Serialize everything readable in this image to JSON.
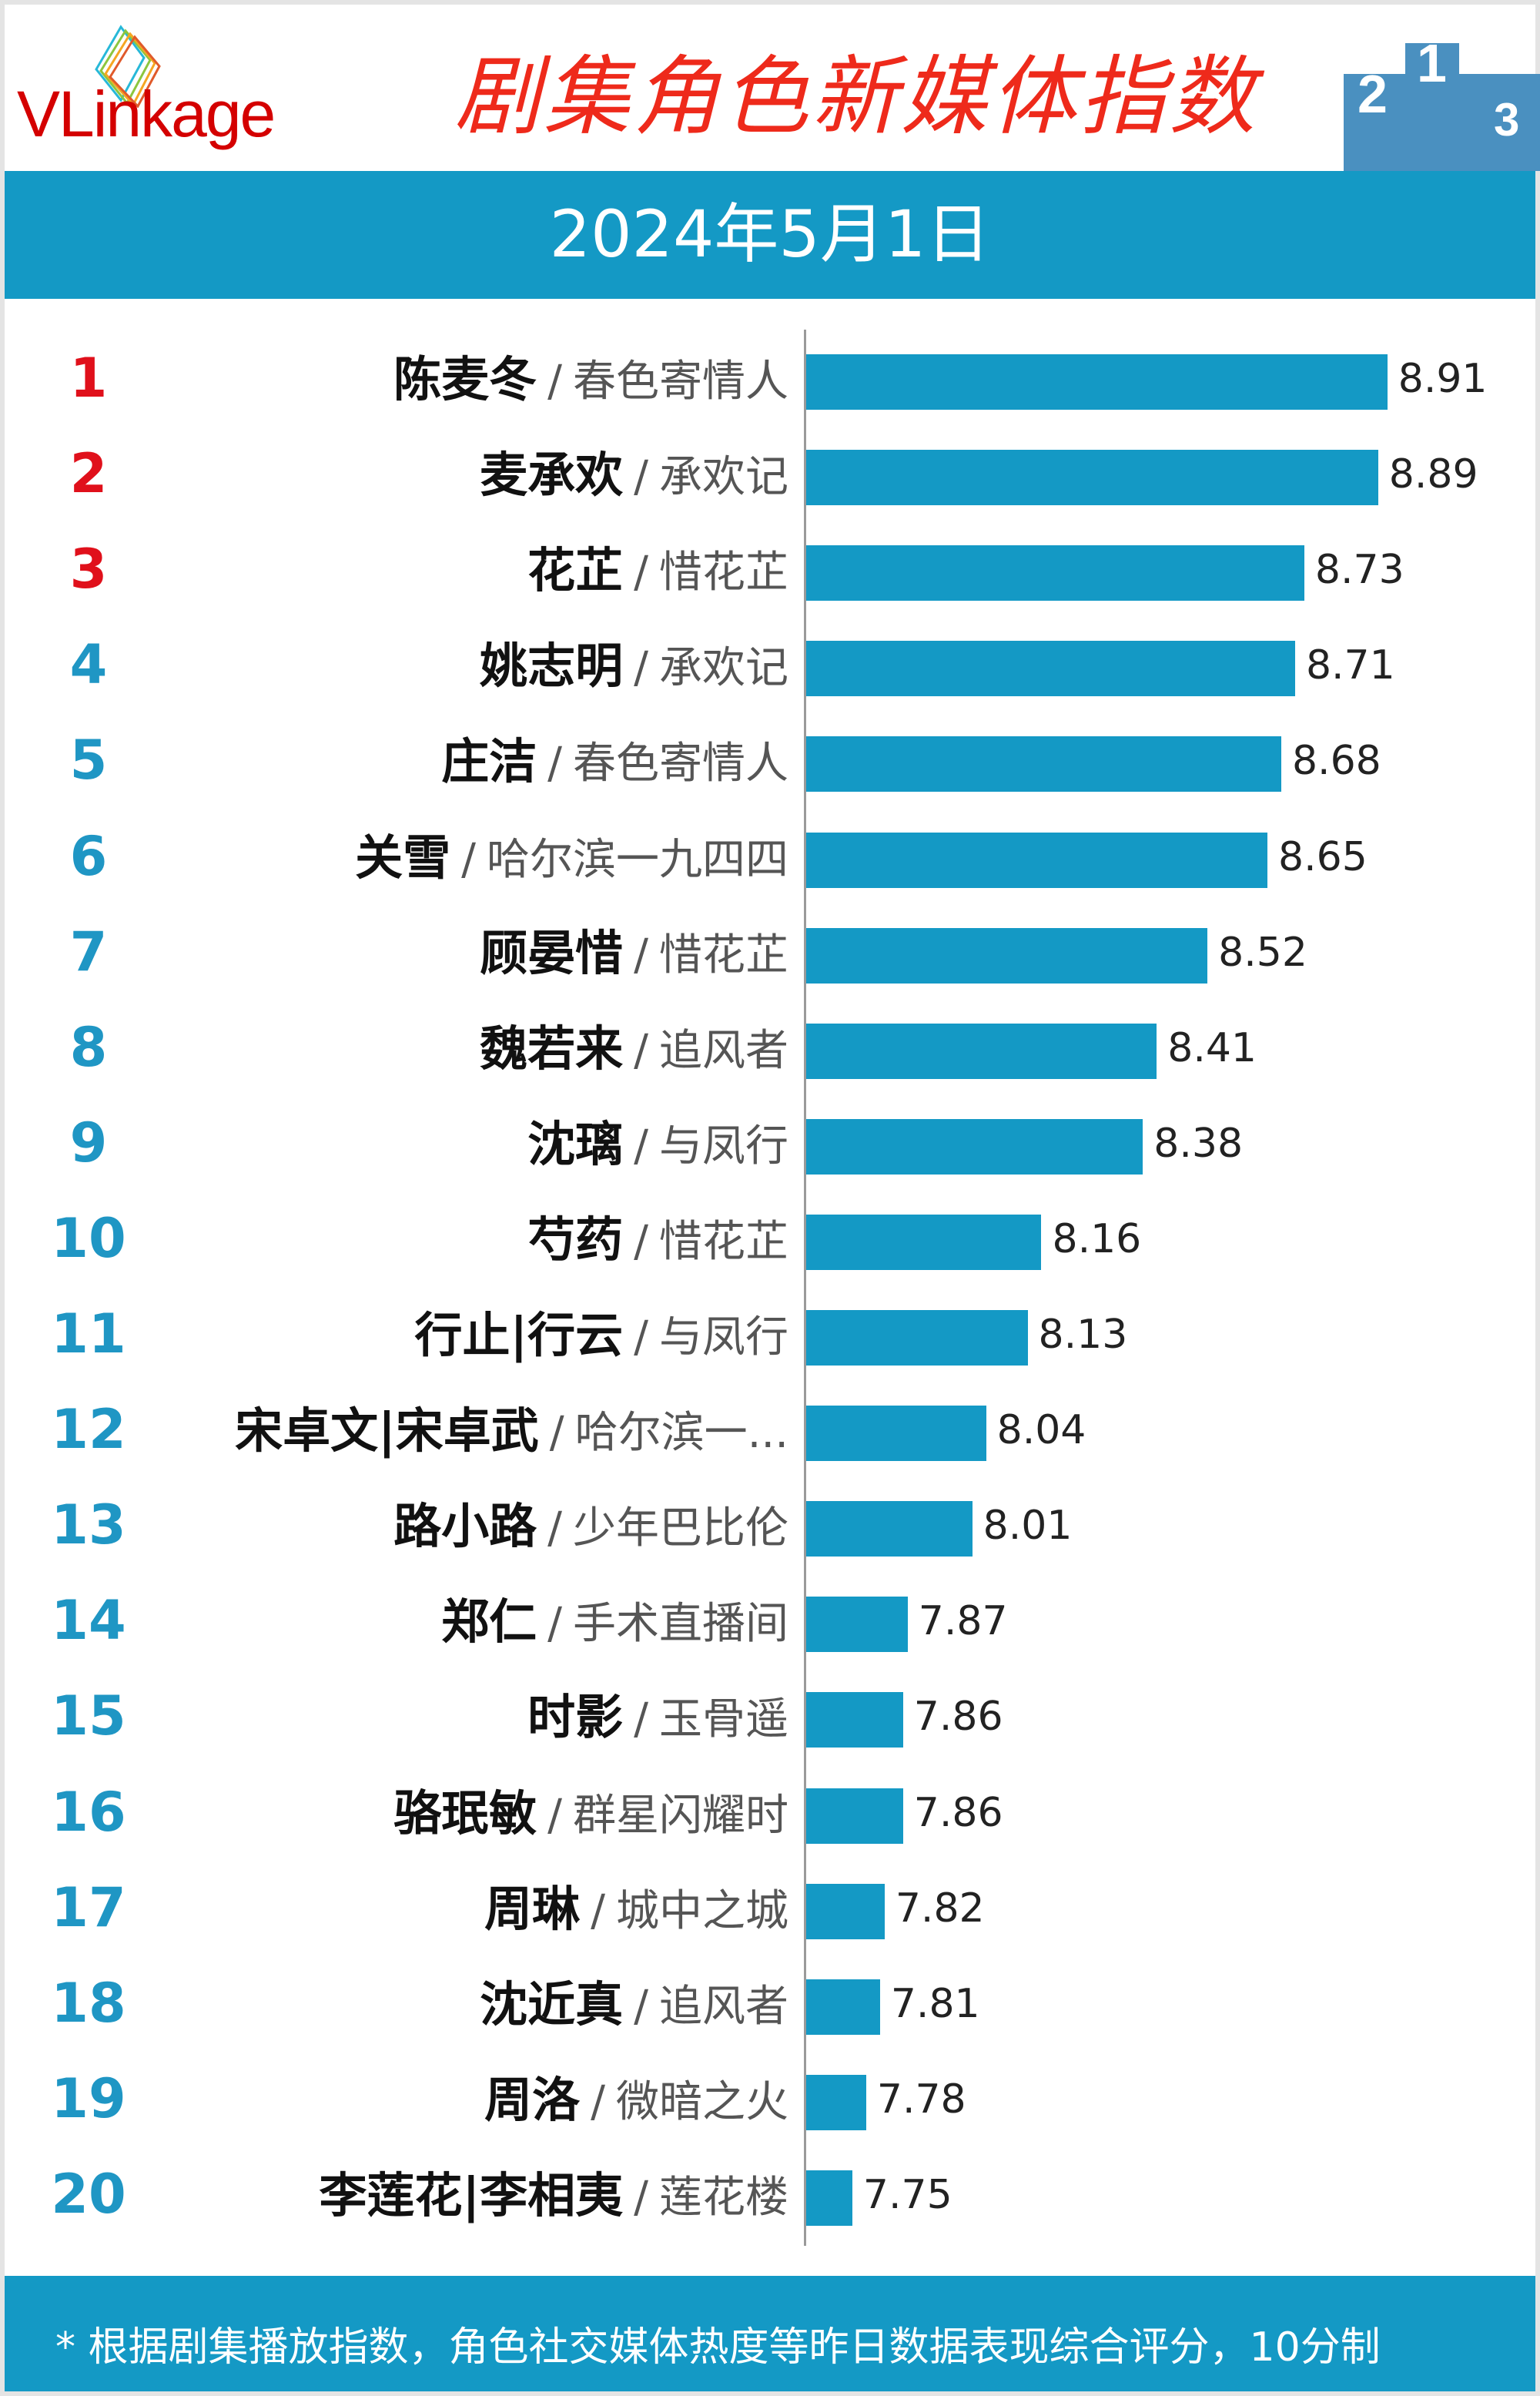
{
  "header": {
    "logo_text": "VLinkage",
    "title": "剧集角色新媒体指数",
    "date": "2024年5月1日",
    "podium_icon": "podium-icon"
  },
  "colors": {
    "bar": "#1499c5",
    "top_rank": "#e0101b",
    "rank": "#1f96c4",
    "title": "#ee2a1b"
  },
  "chart_data": {
    "type": "bar",
    "orientation": "horizontal",
    "title": "剧集角色新媒体指数",
    "subtitle": "2024年5月1日",
    "xlim": [
      7.65,
      8.95
    ],
    "grid": false,
    "rows": [
      {
        "rank": "1",
        "name": "陈麦冬",
        "drama": "春色寄情人",
        "value": 8.91
      },
      {
        "rank": "2",
        "name": "麦承欢",
        "drama": "承欢记",
        "value": 8.89
      },
      {
        "rank": "3",
        "name": "花芷",
        "drama": "惜花芷",
        "value": 8.73
      },
      {
        "rank": "4",
        "name": "姚志明",
        "drama": "承欢记",
        "value": 8.71
      },
      {
        "rank": "5",
        "name": "庄洁",
        "drama": "春色寄情人",
        "value": 8.68
      },
      {
        "rank": "6",
        "name": "关雪",
        "drama": "哈尔滨一九四四",
        "value": 8.65
      },
      {
        "rank": "7",
        "name": "顾晏惜",
        "drama": "惜花芷",
        "value": 8.52
      },
      {
        "rank": "8",
        "name": "魏若来",
        "drama": "追风者",
        "value": 8.41
      },
      {
        "rank": "9",
        "name": "沈璃",
        "drama": "与凤行",
        "value": 8.38
      },
      {
        "rank": "10",
        "name": "芍药",
        "drama": "惜花芷",
        "value": 8.16
      },
      {
        "rank": "11",
        "name": "行止|行云",
        "drama": "与凤行",
        "value": 8.13
      },
      {
        "rank": "12",
        "name": "宋卓文|宋卓武",
        "drama": "哈尔滨一...",
        "value": 8.04
      },
      {
        "rank": "13",
        "name": "路小路",
        "drama": "少年巴比伦",
        "value": 8.01
      },
      {
        "rank": "14",
        "name": "郑仁",
        "drama": "手术直播间",
        "value": 7.87
      },
      {
        "rank": "15",
        "name": "时影",
        "drama": "玉骨遥",
        "value": 7.86
      },
      {
        "rank": "16",
        "name": "骆珉敏",
        "drama": "群星闪耀时",
        "value": 7.86
      },
      {
        "rank": "17",
        "name": "周琳",
        "drama": "城中之城",
        "value": 7.82
      },
      {
        "rank": "18",
        "name": "沈近真",
        "drama": "追风者",
        "value": 7.81
      },
      {
        "rank": "19",
        "name": "周洛",
        "drama": "微暗之火",
        "value": 7.78
      },
      {
        "rank": "20",
        "name": "李莲花|李相夷",
        "drama": "莲花楼",
        "value": 7.75
      }
    ],
    "separator": "/"
  },
  "footer": {
    "note": "* 根据剧集播放指数，角色社交媒体热度等昨日数据表现综合评分，10分制"
  }
}
